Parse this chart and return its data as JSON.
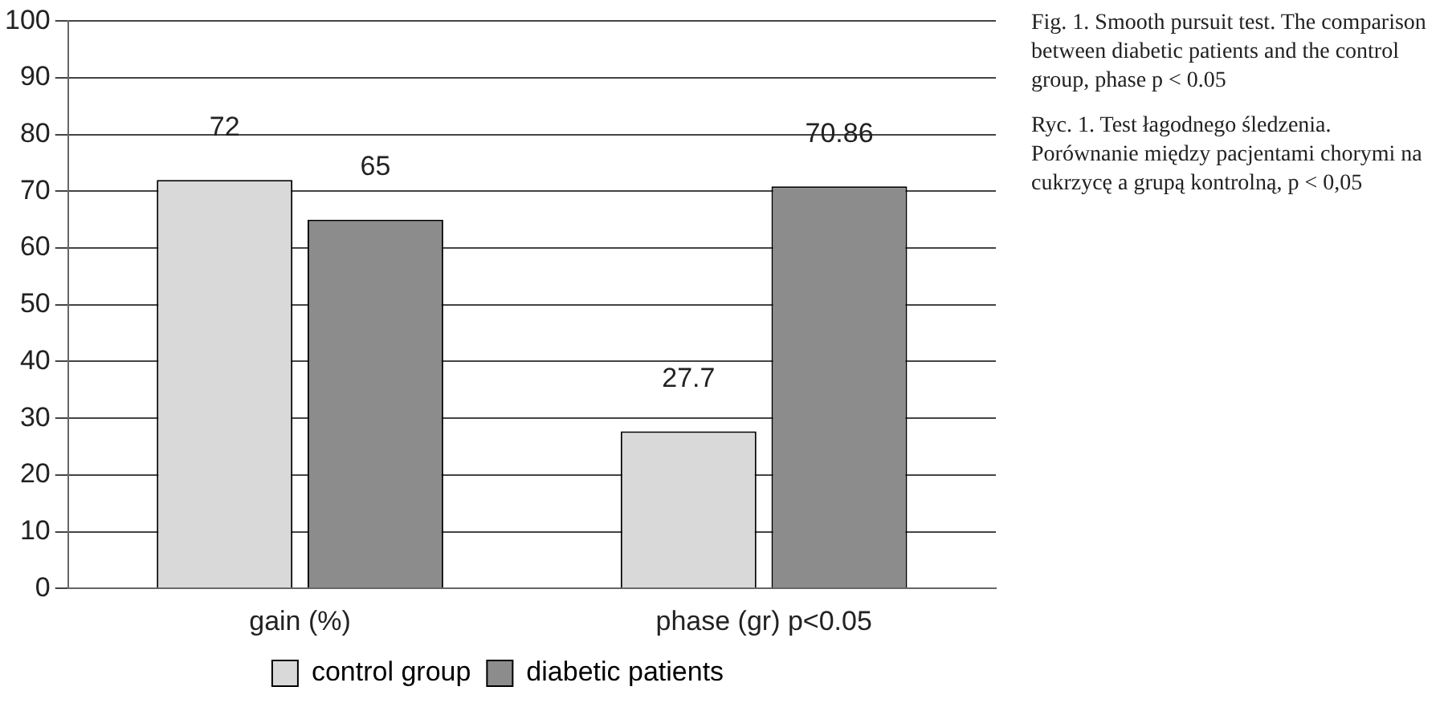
{
  "chart_data": {
    "type": "bar",
    "categories": [
      "gain (%)",
      "phase (gr) p<0.05"
    ],
    "series": [
      {
        "name": "control group",
        "color": "#d9d9d9",
        "values": [
          72,
          27.7
        ]
      },
      {
        "name": "diabetic patients",
        "color": "#8c8c8c",
        "values": [
          65,
          70.86
        ]
      }
    ],
    "ylim": [
      0,
      100
    ],
    "yticks": [
      0,
      10,
      20,
      30,
      40,
      50,
      60,
      70,
      80,
      90,
      100
    ],
    "grid": "y",
    "legend": "bottom",
    "data_labels": true,
    "annotations": [
      "Fig. 1. Smooth pursuit test. The comparison between diabetic patients and the control group, phase p < 0.05",
      "Ryc. 1. Test łagodnego śledzenia. Porównanie między pacjentami chorymi na cukrzycę a grupą kontrolną, p < 0,05"
    ]
  }
}
